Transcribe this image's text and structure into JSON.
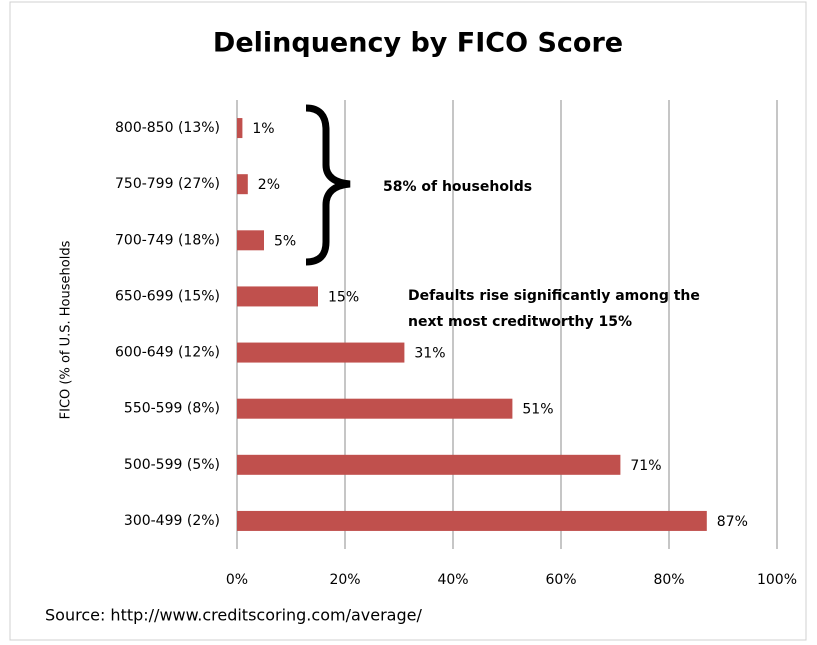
{
  "chart_data": {
    "type": "bar",
    "orientation": "horizontal",
    "title": "Delinquency by FICO Score",
    "y_label": "FICO  (% of U.S. Households",
    "categories": [
      "800-850 (13%)",
      "750-799 (27%)",
      "700-749 (18%)",
      "650-699 (15%)",
      "600-649 (12%)",
      "550-599 (8%)",
      "500-599 (5%)",
      "300-499 (2%)"
    ],
    "values": [
      1,
      2,
      5,
      15,
      31,
      51,
      71,
      87
    ],
    "value_labels": [
      "1%",
      "2%",
      "5%",
      "15%",
      "31%",
      "51%",
      "71%",
      "87%"
    ],
    "color": "#c0504d",
    "xlim": [
      0,
      100
    ],
    "xticks": [
      {
        "value": 0,
        "label": "0%"
      },
      {
        "value": 20,
        "label": "20%"
      },
      {
        "value": 40,
        "label": "40%"
      },
      {
        "value": 60,
        "label": "60%"
      },
      {
        "value": 80,
        "label": "80%"
      },
      {
        "value": 100,
        "label": "100%"
      }
    ],
    "grid": true,
    "annotations": [
      "58% of households",
      "Defaults rise significantly among the",
      "next most creditworthy 15%"
    ],
    "source": "Source: http://www.creditscoring.com/average/"
  }
}
